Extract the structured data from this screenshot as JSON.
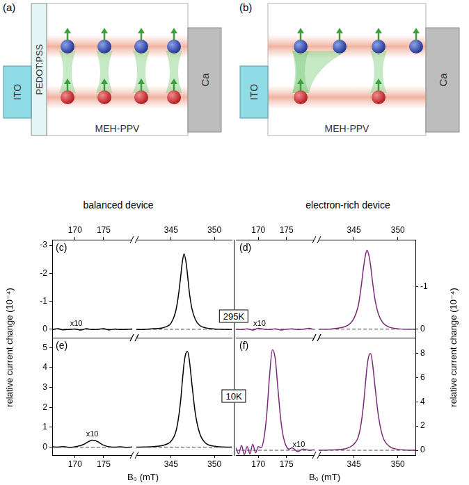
{
  "diagram": {
    "panels": [
      {
        "label": "(a)",
        "electrode_left": "ITO",
        "layer": "PEDOT:PSS",
        "polymer": "MEH-PPV",
        "electrode_right": "Ca",
        "caption": "balanced device",
        "electrons": 4,
        "holes": 4
      },
      {
        "label": "(b)",
        "electrode_left": "ITO",
        "polymer": "MEH-PPV",
        "electrode_right": "Ca",
        "caption": "electron-rich device",
        "electrons": 4,
        "holes": 2
      }
    ]
  },
  "row_labels": [
    "295K",
    "10K"
  ],
  "chart_data": [
    {
      "panel": "(c)",
      "type": "line",
      "color": "#000000",
      "grid": false,
      "hline": 0,
      "annotation": "x10",
      "ylim": [
        0.3,
        -3.2
      ],
      "yticks": [
        -3,
        -2,
        -1,
        0
      ],
      "segments": [
        {
          "xlim": [
            166,
            180
          ],
          "xticks": [
            170,
            175
          ],
          "x": [
            166,
            167,
            168,
            169,
            170,
            171,
            172,
            173,
            174,
            175,
            176,
            177,
            178,
            179,
            180
          ],
          "values": [
            0.01,
            -0.02,
            0.02,
            0,
            -0.01,
            0.03,
            -0.02,
            0.01,
            0,
            -0.02,
            0.02,
            -0.01,
            0.01,
            0,
            -0.01
          ]
        },
        {
          "xlim": [
            341,
            352
          ],
          "xticks": [
            345,
            350
          ],
          "x": [
            341,
            342,
            343,
            344,
            344.5,
            345,
            345.5,
            345.8,
            346.1,
            346.3,
            346.5,
            346.7,
            346.9,
            347.1,
            347.4,
            347.8,
            348.3,
            349,
            350,
            351,
            352
          ],
          "values": [
            0.01,
            0,
            -0.02,
            -0.05,
            -0.1,
            -0.22,
            -0.6,
            -1.1,
            -1.85,
            -2.4,
            -2.7,
            -2.45,
            -1.95,
            -1.35,
            -0.75,
            -0.35,
            -0.14,
            -0.05,
            -0.01,
            0,
            0.01
          ]
        }
      ]
    },
    {
      "panel": "(d)",
      "type": "line",
      "color": "#7b2a7b",
      "grid": false,
      "hline": 0,
      "annotation": "x10",
      "ylabel": "relative current change (10⁻⁴)",
      "ylim": [
        0.2,
        -2.1
      ],
      "yticks": [
        -1,
        0
      ],
      "segments": [
        {
          "xlim": [
            166,
            180
          ],
          "xticks": [
            170,
            175
          ],
          "x": [
            166,
            167,
            168,
            169,
            170,
            171,
            172,
            173,
            174,
            175,
            176,
            177,
            178,
            179,
            180
          ],
          "values": [
            0,
            0.01,
            -0.01,
            0.02,
            -0.02,
            0,
            0.01,
            -0.01,
            0.02,
            0,
            -0.01,
            0.01,
            0,
            -0.02,
            0.01
          ]
        },
        {
          "xlim": [
            341,
            352
          ],
          "xticks": [
            345,
            350
          ],
          "x": [
            341,
            342,
            343,
            344,
            344.5,
            345,
            345.5,
            345.8,
            346.1,
            346.3,
            346.5,
            346.7,
            346.9,
            347.1,
            347.4,
            347.8,
            348.3,
            349,
            350,
            351,
            352
          ],
          "values": [
            0,
            0,
            -0.02,
            -0.06,
            -0.12,
            -0.25,
            -0.55,
            -0.95,
            -1.45,
            -1.72,
            -1.85,
            -1.74,
            -1.5,
            -1.15,
            -0.7,
            -0.35,
            -0.15,
            -0.05,
            -0.01,
            0,
            0
          ]
        }
      ]
    },
    {
      "panel": "(e)",
      "type": "line",
      "color": "#000000",
      "grid": false,
      "hline": 0,
      "annotation": "x10",
      "ylabel": "relative current change (10⁻⁴)",
      "xlabel": "B₀ (mT)",
      "ylim": [
        -0.4,
        5.5
      ],
      "yticks": [
        0,
        1,
        2,
        3,
        4,
        5
      ],
      "segments": [
        {
          "xlim": [
            166,
            180
          ],
          "xticks": [
            170,
            175
          ],
          "x": [
            166,
            167,
            168,
            169,
            170,
            170.5,
            171,
            171.5,
            172,
            172.5,
            173,
            173.5,
            174,
            174.5,
            175,
            175.5,
            176,
            177,
            178,
            179,
            180
          ],
          "values": [
            0.02,
            0,
            0.03,
            -0.01,
            0.02,
            0.05,
            0.08,
            0.14,
            0.22,
            0.3,
            0.35,
            0.33,
            0.27,
            0.18,
            0.1,
            0.05,
            0.02,
            0,
            0.02,
            -0.01,
            0.01
          ]
        },
        {
          "xlim": [
            341,
            352
          ],
          "xticks": [
            345,
            350
          ],
          "x": [
            341,
            342,
            343,
            344,
            344.5,
            345,
            345.5,
            345.8,
            346.1,
            346.3,
            346.5,
            346.7,
            346.9,
            347.1,
            347.4,
            347.8,
            348.3,
            349,
            350,
            351,
            352
          ],
          "values": [
            0,
            0.01,
            0.03,
            0.08,
            0.15,
            0.3,
            0.7,
            1.3,
            2.3,
            3.3,
            4.2,
            4.7,
            4.8,
            4.4,
            3.2,
            1.7,
            0.7,
            0.2,
            0.05,
            0.01,
            0
          ]
        }
      ]
    },
    {
      "panel": "(f)",
      "type": "line",
      "color": "#7b2a7b",
      "grid": false,
      "hline": 0,
      "annotation": "x10",
      "xlabel": "B₀ (mT)",
      "ylim": [
        -0.4,
        9.3
      ],
      "yticks": [
        0,
        2,
        4,
        6,
        8
      ],
      "segments": [
        {
          "xlim": [
            166,
            180
          ],
          "xticks": [
            170,
            175
          ],
          "x": [
            166,
            166.5,
            167,
            167.5,
            168,
            168.5,
            169,
            169.5,
            170,
            170.5,
            171,
            171.5,
            172,
            172.5,
            173,
            173.5,
            174,
            174.5,
            175,
            175.5,
            176,
            177,
            178,
            179,
            180
          ],
          "values": [
            0.2,
            -0.3,
            0.4,
            -0.35,
            0.3,
            -0.3,
            0.5,
            -0.2,
            0.3,
            0.2,
            1.0,
            3.0,
            6.2,
            8.3,
            7.6,
            5.0,
            2.5,
            1.0,
            0.3,
            0.1,
            0.2,
            -0.1,
            0.1,
            0,
            0.05
          ]
        },
        {
          "xlim": [
            341,
            352
          ],
          "xticks": [
            345,
            350
          ],
          "x": [
            341,
            342,
            343,
            344,
            344.5,
            345,
            345.5,
            345.8,
            346.1,
            346.3,
            346.5,
            346.7,
            346.9,
            347.1,
            347.4,
            347.8,
            348.3,
            349,
            350,
            351,
            352
          ],
          "values": [
            0,
            0.02,
            0.05,
            0.12,
            0.25,
            0.5,
            1.1,
            2.1,
            3.8,
            5.4,
            6.9,
            7.8,
            8.0,
            7.3,
            5.3,
            2.8,
            1.1,
            0.35,
            0.08,
            0.02,
            0
          ]
        }
      ]
    }
  ]
}
